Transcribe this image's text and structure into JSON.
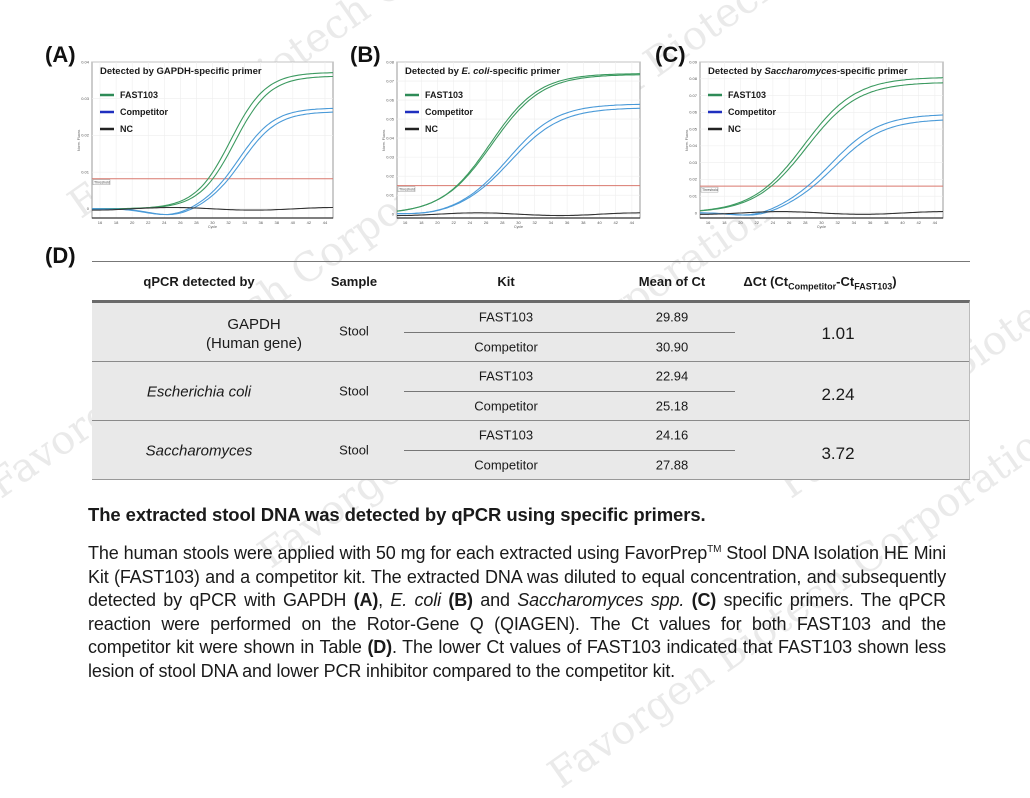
{
  "panels": {
    "a_label": "(A)",
    "b_label": "(B)",
    "c_label": "(C)",
    "d_label": "(D)"
  },
  "watermark": "Favorgen Biotech Corporation",
  "chart_data": [
    {
      "id": "A",
      "type": "line",
      "title_pre": "Detected by ",
      "title_em": "",
      "title_post": "GAPDH-specific primer",
      "xlabel": "Cycle",
      "ylabel": "Norm. Fluoro.",
      "xlim": [
        15,
        45
      ],
      "ylim": [
        -0.0025,
        0.04
      ],
      "xticks": [
        16,
        18,
        20,
        22,
        24,
        26,
        28,
        30,
        32,
        34,
        36,
        38,
        40,
        42,
        44
      ],
      "yticks": [
        0,
        0.01,
        0.02,
        0.03,
        0.04
      ],
      "ytick_labels": [
        "0",
        "0.01",
        "0.02",
        "0.03",
        "0.04"
      ],
      "threshold": 0.0082,
      "threshold_label": "Threshold",
      "legend": [
        {
          "name": "FAST103",
          "color": "#2e8b57"
        },
        {
          "name": "Competitor",
          "color": "#1f2fbf"
        },
        {
          "name": "NC",
          "color": "#222222"
        }
      ],
      "series": [
        {
          "name": "FAST103 rep1",
          "group": "FAST103",
          "color": "#3c9a60",
          "ct": 29.6,
          "plateau": 0.0372,
          "slope": 2.2,
          "base": 0.0
        },
        {
          "name": "FAST103 rep2",
          "group": "FAST103",
          "color": "#3c9a60",
          "ct": 30.1,
          "plateau": 0.0362,
          "slope": 2.2,
          "base": 0.0
        },
        {
          "name": "Competitor rep1",
          "group": "Competitor",
          "color": "#4a9ad8",
          "ct": 30.7,
          "plateau": 0.0275,
          "slope": 2.2,
          "base": -0.002
        },
        {
          "name": "Competitor rep2",
          "group": "Competitor",
          "color": "#4a9ad8",
          "ct": 31.1,
          "plateau": 0.0265,
          "slope": 2.2,
          "base": -0.002
        },
        {
          "name": "NC",
          "group": "NC",
          "color": "#333333",
          "flat": 0.0
        }
      ]
    },
    {
      "id": "B",
      "type": "line",
      "title_pre": "Detected by ",
      "title_em": "E. coli",
      "title_post": "-specific primer",
      "xlabel": "Cycle",
      "ylabel": "Norm. Fluoro.",
      "xlim": [
        15,
        45
      ],
      "ylim": [
        -0.002,
        0.08
      ],
      "xticks": [
        16,
        18,
        20,
        22,
        24,
        26,
        28,
        30,
        32,
        34,
        36,
        38,
        40,
        42,
        44
      ],
      "yticks": [
        0,
        0.01,
        0.02,
        0.03,
        0.04,
        0.05,
        0.06,
        0.07,
        0.08
      ],
      "ytick_labels": [
        "0",
        "0.01",
        "0.02",
        "0.03",
        "0.04",
        "0.05",
        "0.06",
        "0.07",
        "0.08"
      ],
      "threshold": 0.015,
      "threshold_label": "Threshold",
      "legend": [
        {
          "name": "FAST103",
          "color": "#2e8b57"
        },
        {
          "name": "Competitor",
          "color": "#1f2fbf"
        },
        {
          "name": "NC",
          "color": "#222222"
        }
      ],
      "series": [
        {
          "name": "FAST103 rep1",
          "group": "FAST103",
          "color": "#3c9a60",
          "ct": 22.9,
          "plateau": 0.074,
          "slope": 3.0,
          "base": 0.0
        },
        {
          "name": "FAST103 rep2",
          "group": "FAST103",
          "color": "#3c9a60",
          "ct": 23.0,
          "plateau": 0.0735,
          "slope": 3.1,
          "base": 0.0
        },
        {
          "name": "Competitor rep1",
          "group": "Competitor",
          "color": "#4a9ad8",
          "ct": 25.1,
          "plateau": 0.058,
          "slope": 3.0,
          "base": -0.001
        },
        {
          "name": "Competitor rep2",
          "group": "Competitor",
          "color": "#4a9ad8",
          "ct": 25.3,
          "plateau": 0.056,
          "slope": 3.1,
          "base": -0.001
        },
        {
          "name": "NC",
          "group": "NC",
          "color": "#333333",
          "flat": 0.0
        }
      ]
    },
    {
      "id": "C",
      "type": "line",
      "title_pre": "Detected by ",
      "title_em": "Saccharomyces",
      "title_post": "-specific primer",
      "xlabel": "Cycle",
      "ylabel": "Norm. Fluoro.",
      "xlim": [
        15,
        45
      ],
      "ylim": [
        -0.003,
        0.09
      ],
      "xticks": [
        16,
        18,
        20,
        22,
        24,
        26,
        28,
        30,
        32,
        34,
        36,
        38,
        40,
        42,
        44
      ],
      "yticks": [
        0,
        0.01,
        0.02,
        0.03,
        0.04,
        0.05,
        0.06,
        0.07,
        0.08,
        0.09
      ],
      "ytick_labels": [
        "0",
        "0.01",
        "0.02",
        "0.03",
        "0.04",
        "0.05",
        "0.06",
        "0.07",
        "0.08",
        "0.09"
      ],
      "threshold": 0.016,
      "threshold_label": "Threshold",
      "legend": [
        {
          "name": "FAST103",
          "color": "#2e8b57"
        },
        {
          "name": "Competitor",
          "color": "#1f2fbf"
        },
        {
          "name": "NC",
          "color": "#222222"
        }
      ],
      "series": [
        {
          "name": "FAST103 rep1",
          "group": "FAST103",
          "color": "#3c9a60",
          "ct": 24.0,
          "plateau": 0.081,
          "slope": 3.2,
          "base": 0.0
        },
        {
          "name": "FAST103 rep2",
          "group": "FAST103",
          "color": "#3c9a60",
          "ct": 24.3,
          "plateau": 0.078,
          "slope": 3.2,
          "base": 0.0
        },
        {
          "name": "Competitor rep1",
          "group": "Competitor",
          "color": "#4a9ad8",
          "ct": 27.6,
          "plateau": 0.059,
          "slope": 3.0,
          "base": -0.003
        },
        {
          "name": "Competitor rep2",
          "group": "Competitor",
          "color": "#4a9ad8",
          "ct": 28.1,
          "plateau": 0.056,
          "slope": 3.0,
          "base": -0.003
        },
        {
          "name": "NC",
          "group": "NC",
          "color": "#333333",
          "flat": 0.0
        }
      ]
    }
  ],
  "table": {
    "headers": {
      "target": "qPCR detected by",
      "sample": "Sample",
      "kit": "Kit",
      "mean": "Mean of Ct",
      "delta_pre": "ΔCt (Ct",
      "delta_sub1": "Competitor",
      "delta_mid": "-Ct",
      "delta_sub2": "FAST103",
      "delta_post": ")"
    },
    "rows": [
      {
        "target_line1": "GAPDH",
        "target_line2": "(Human gene)",
        "italic": false,
        "sample": "Stool",
        "kit1": "FAST103",
        "ct1": "29.89",
        "kit2": "Competitor",
        "ct2": "30.90",
        "delta": "1.01"
      },
      {
        "target_line1": "Escherichia coli",
        "target_line2": "",
        "italic": true,
        "sample": "Stool",
        "kit1": "FAST103",
        "ct1": "22.94",
        "kit2": "Competitor",
        "ct2": "25.18",
        "delta": "2.24"
      },
      {
        "target_line1": "Saccharomyces",
        "target_line2": "",
        "italic": true,
        "sample": "Stool",
        "kit1": "FAST103",
        "ct1": "24.16",
        "kit2": "Competitor",
        "ct2": "27.88",
        "delta": "3.72"
      }
    ]
  },
  "caption": {
    "title": "The extracted stool DNA was detected by qPCR using specific primers.",
    "p1": "The human stools were applied with 50 mg for each extracted using FavorPrep",
    "tm": "TM",
    "p2": " Stool DNA Isolation HE Mini Kit (FAST103) and a competitor kit. The extracted DNA was diluted to equal concentration, and subsequently detected by qPCR with GAPDH ",
    "refA": "(A)",
    "p3": ", ",
    "ecoli": "E. coli",
    "p4": " ",
    "refB": "(B)",
    "p5": " and ",
    "sacch": "Saccharomyces spp.",
    "p6": " ",
    "refC": "(C)",
    "p7": " specific primers. The qPCR reaction were performed on the Rotor-Gene Q (QIAGEN). The Ct values for both FAST103 and the competitor kit were shown in Table ",
    "refD": "(D)",
    "p8": ". The lower Ct values of FAST103 indicated that FAST103 shown less lesion of stool DNA and lower PCR inhibitor compared to the competitor kit."
  }
}
